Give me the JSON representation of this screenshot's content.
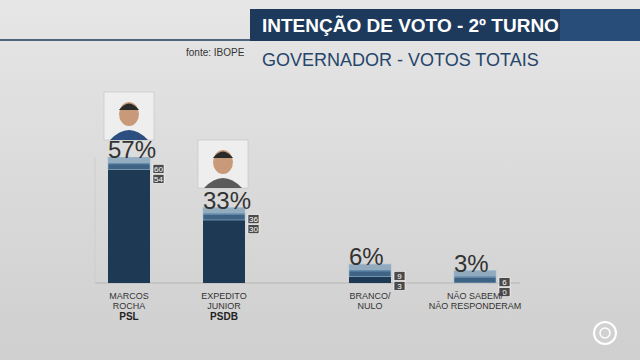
{
  "chart_data": {
    "type": "bar",
    "title": "INTENÇÃO DE VOTO - 2º TURNO",
    "subtitle": "GOVERNADOR - VOTOS TOTAIS",
    "source": "fonte: IBOPE",
    "categories": [
      "MARCOS\nROCHA",
      "EXPEDITO\nJUNIOR",
      "BRANCO/\nNULO",
      "NÃO SABEM/\nNÃO RESPONDERAM"
    ],
    "parties": [
      "PSL",
      "PSDB",
      null,
      null
    ],
    "values": [
      57,
      33,
      6,
      3
    ],
    "value_labels": [
      "57%",
      "33%",
      "6%",
      "3%"
    ],
    "error_high": [
      60,
      36,
      9,
      6
    ],
    "error_low": [
      54,
      30,
      3,
      0
    ],
    "color": "#1d3954",
    "ylim": [
      0,
      60
    ],
    "data_labels": true,
    "tick_labels": false,
    "grid": false
  }
}
